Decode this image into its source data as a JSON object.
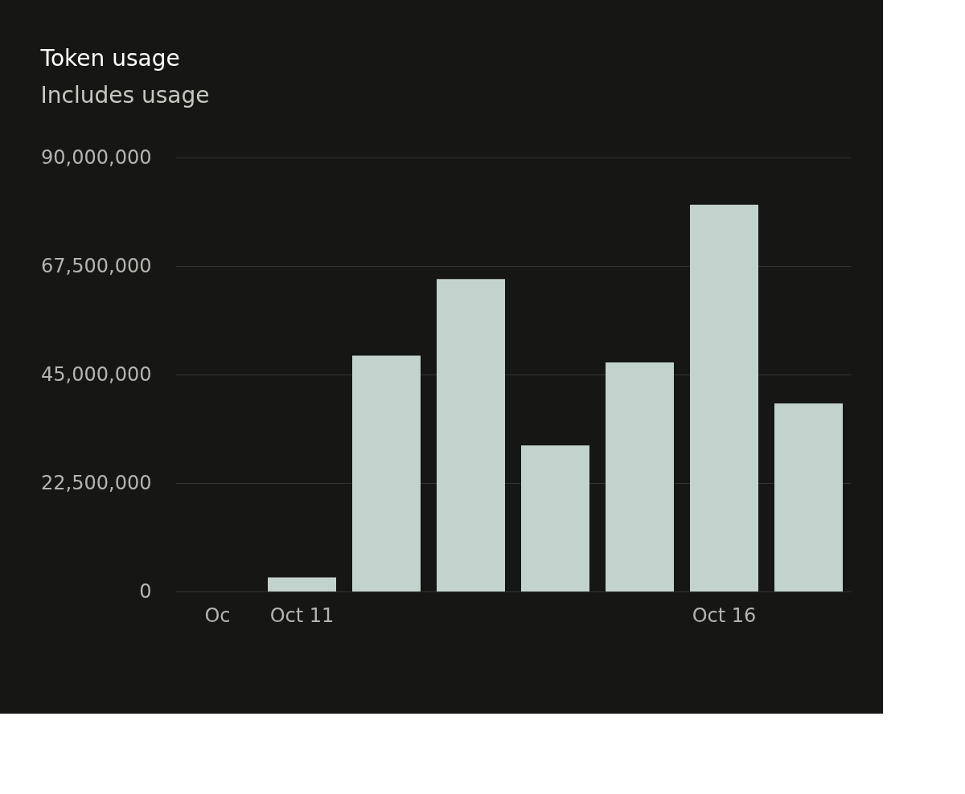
{
  "chart_data": {
    "type": "bar",
    "title": "Token usage",
    "subtitle": "Includes usage",
    "categories": [
      "Oc",
      "Oct 11",
      null,
      null,
      null,
      null,
      "Oct 16",
      null
    ],
    "series": [
      {
        "color": "#c2d3cd",
        "values": [
          0,
          2900000,
          48900000,
          64800000,
          30300000,
          47500000,
          80200000,
          39000000
        ]
      }
    ],
    "ylim": [
      0,
      90000000
    ],
    "yticks": [
      0,
      {
        "value": 22500000,
        "label": "22,500,000"
      },
      {
        "value": 45000000,
        "label": "45,000,000"
      },
      {
        "value": 67500000,
        "label": "67,500,000"
      },
      {
        "value": 90000000,
        "label": "90,000,000"
      }
    ],
    "grid": "y",
    "legend": false
  }
}
